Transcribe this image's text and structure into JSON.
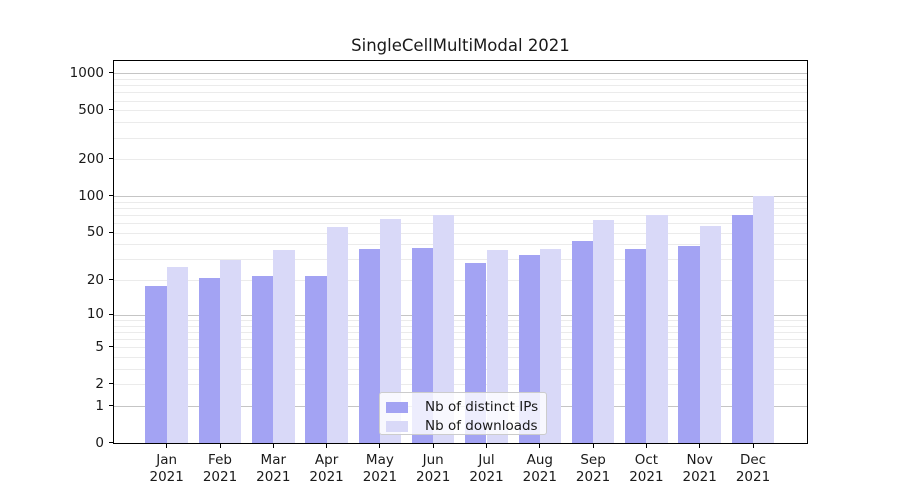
{
  "title": "SingleCellMultiModal 2021",
  "legend": {
    "items": [
      {
        "label": "Nb of distinct IPs",
        "color": "#a3a3f3"
      },
      {
        "label": "Nb of downloads",
        "color": "#d9d9f8"
      }
    ]
  },
  "colors": {
    "distinct_ips_bar": "#a3a3f3",
    "downloads_bar": "#d9d9f8",
    "major_grid": "#c5c5c5",
    "minor_grid": "#ebebeb",
    "axis": "#000000"
  },
  "chart_data": {
    "type": "bar",
    "title": "SingleCellMultiModal 2021",
    "categories": [
      "Jan 2021",
      "Feb 2021",
      "Mar 2021",
      "Apr 2021",
      "May 2021",
      "Jun 2021",
      "Jul 2021",
      "Aug 2021",
      "Sep 2021",
      "Oct 2021",
      "Nov 2021",
      "Dec 2021"
    ],
    "series": [
      {
        "name": "Nb of distinct IPs",
        "color": "#a3a3f3",
        "values": [
          18,
          21,
          22,
          22,
          37,
          38,
          28,
          33,
          43,
          37,
          39,
          71
        ]
      },
      {
        "name": "Nb of downloads",
        "color": "#d9d9f8",
        "values": [
          26,
          30,
          36,
          56,
          65,
          70,
          36,
          37,
          64,
          70,
          57,
          102
        ]
      }
    ],
    "xlabel": "",
    "ylabel": "",
    "yscale": "log1p",
    "yticks": [
      0,
      1,
      2,
      5,
      10,
      20,
      50,
      100,
      200,
      500,
      1000
    ],
    "ylim": [
      0,
      1200
    ],
    "major_grid_values": [
      1,
      10,
      100,
      1000
    ],
    "grid": "both",
    "legend_position": "lower center"
  }
}
